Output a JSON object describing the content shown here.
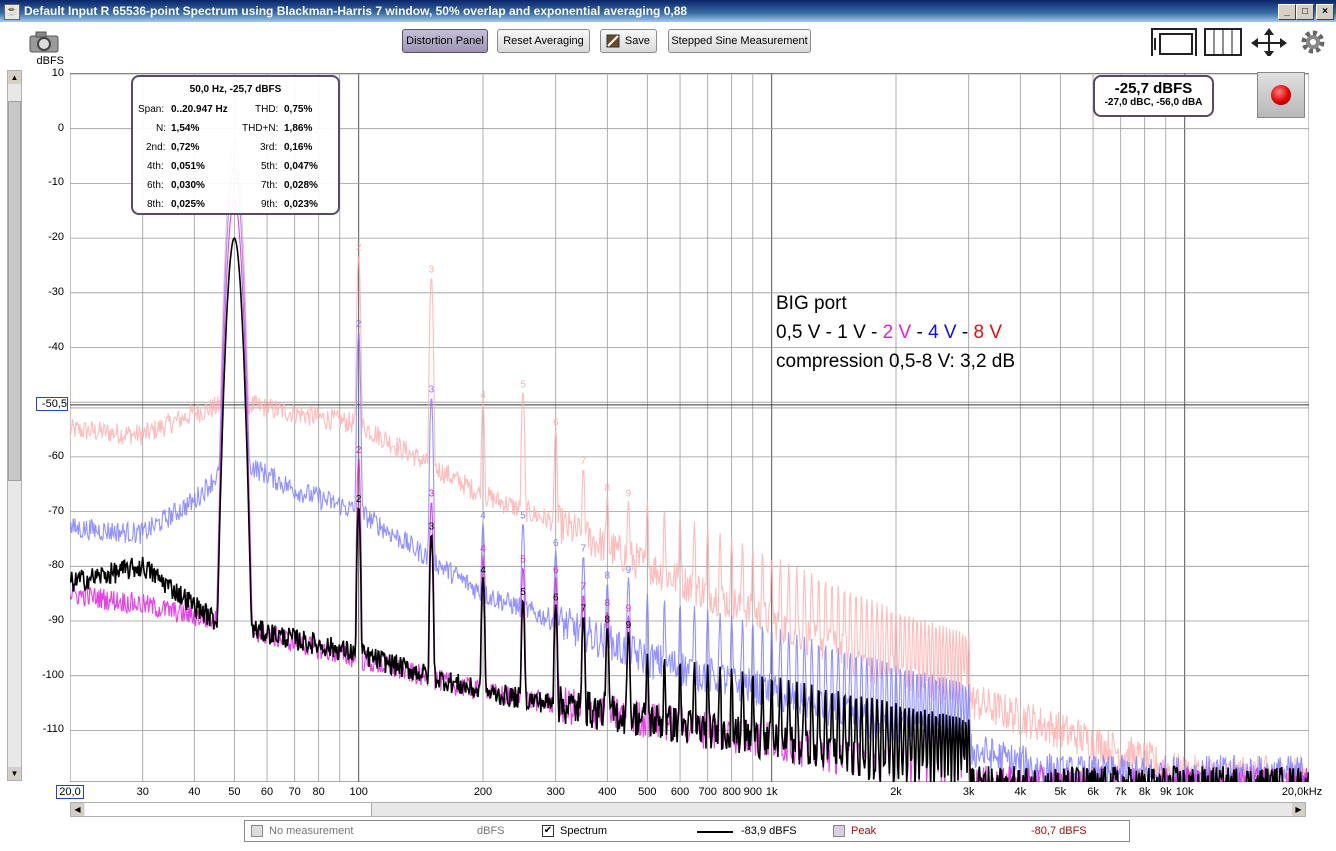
{
  "window": {
    "title": "Default Input R 65536-point Spectrum using Blackman-Harris 7 window, 50% overlap and exponential averaging 0,88",
    "minimize": "_",
    "maximize": "□",
    "close": "×"
  },
  "toolbar": {
    "distortion_panel": "Distortion Panel",
    "reset_averaging": "Reset Averaging",
    "save": "Save",
    "stepped_sine": "Stepped Sine Measurement"
  },
  "icons": {
    "camera": "camera-icon",
    "layout": "layout-icon",
    "grid": "grid-columns-icon",
    "expand": "expand-arrows-icon",
    "gear": "gear-icon"
  },
  "axis": {
    "y_unit": "dBFS",
    "y_ticks": [
      "10",
      "0",
      "-10",
      "-20",
      "-30",
      "-40",
      "-60",
      "-70",
      "-80",
      "-90",
      "-100",
      "-110"
    ],
    "y_cursor": "-50,5",
    "x_start": "20,0",
    "x_end": "20,0kHz",
    "x_ticks": [
      "30",
      "40",
      "50",
      "60",
      "70",
      "80",
      "100",
      "200",
      "300",
      "400",
      "500",
      "600",
      "700",
      "800",
      "900",
      "1k",
      "2k",
      "3k",
      "4k",
      "5k",
      "6k",
      "7k",
      "8k",
      "9k",
      "10k"
    ]
  },
  "distortion": {
    "header": "50,0 Hz, -25,7 dBFS",
    "span_label": "Span:",
    "span_value": "0..20.947 Hz",
    "thd_label": "THD:",
    "thd_value": "0,75%",
    "n_label": "N:",
    "n_value": "1,54%",
    "thdn_label": "THD+N:",
    "thdn_value": "1,86%",
    "h2_label": "2nd:",
    "h2_value": "0,72%",
    "h3_label": "3rd:",
    "h3_value": "0,16%",
    "h4_label": "4th:",
    "h4_value": "0,051%",
    "h5_label": "5th:",
    "h5_value": "0,047%",
    "h6_label": "6th:",
    "h6_value": "0,030%",
    "h7_label": "7th:",
    "h7_value": "0,028%",
    "h8_label": "8th:",
    "h8_value": "0,025%",
    "h9_label": "9th:",
    "h9_value": "0,023%"
  },
  "level": {
    "main": "-25,7 dBFS",
    "sub": "-27,0 dBC, -56,0 dBA"
  },
  "annotation": {
    "line1": "BIG port",
    "l2_a": "0,5 V - 1 V  - ",
    "l2_b": "2 V",
    "l2_c": "  - ",
    "l2_d": "4 V",
    "l2_e": " - ",
    "l2_f": "8 V",
    "line3": "compression 0,5-8 V: 3,2 dB",
    "color_2v": "#e020e0",
    "color_4v": "#1010e0",
    "color_8v": "#e01010"
  },
  "legend": {
    "no_measurement": "No measurement",
    "no_measurement_unit": "dBFS",
    "spectrum": "Spectrum",
    "spectrum_value": "-83,9 dBFS",
    "peak": "Peak",
    "peak_value": "-80,7 dBFS"
  },
  "chart_data": {
    "type": "line",
    "xlabel": "",
    "ylabel": "dBFS",
    "xlim": [
      20,
      20000
    ],
    "ylim": [
      -120,
      10
    ],
    "x_scale": "log",
    "grid": true,
    "fundamental_hz": 50,
    "harmonic_markers": [
      "2",
      "3",
      "4",
      "5",
      "6",
      "7",
      "8",
      "9"
    ],
    "series": [
      {
        "color": "#000000",
        "noise_floor": [
          [
            20,
            -83
          ],
          [
            30,
            -80
          ],
          [
            45,
            -90
          ],
          [
            100,
            -96
          ],
          [
            200,
            -103
          ],
          [
            500,
            -108
          ],
          [
            1000,
            -112
          ],
          [
            2000,
            -117
          ],
          [
            3000,
            -120
          ]
        ],
        "peaks": [
          [
            50,
            -20
          ],
          [
            100,
            -69
          ],
          [
            150,
            -74
          ],
          [
            200,
            -82
          ],
          [
            250,
            -86
          ],
          [
            300,
            -87
          ],
          [
            350,
            -89
          ],
          [
            400,
            -91
          ],
          [
            450,
            -92
          ]
        ]
      },
      {
        "color": "#e020e0",
        "noise_floor": [
          [
            20,
            -85
          ],
          [
            30,
            -87
          ],
          [
            45,
            -90
          ],
          [
            100,
            -97
          ],
          [
            200,
            -103
          ],
          [
            500,
            -108
          ],
          [
            1000,
            -112
          ],
          [
            2000,
            -117
          ],
          [
            3000,
            -120
          ]
        ],
        "peaks": [
          [
            50,
            -13
          ],
          [
            100,
            -60
          ],
          [
            150,
            -68
          ],
          [
            200,
            -78
          ],
          [
            250,
            -80
          ],
          [
            300,
            -82
          ],
          [
            350,
            -85
          ],
          [
            400,
            -88
          ],
          [
            450,
            -89
          ]
        ]
      },
      {
        "color": "#8080ff",
        "noise_floor": [
          [
            20,
            -73
          ],
          [
            30,
            -74
          ],
          [
            40,
            -68
          ],
          [
            50,
            -60
          ],
          [
            70,
            -66
          ],
          [
            100,
            -70
          ],
          [
            200,
            -85
          ],
          [
            300,
            -90
          ],
          [
            500,
            -97
          ],
          [
            1000,
            -103
          ],
          [
            2000,
            -110
          ],
          [
            5000,
            -118
          ]
        ],
        "peaks": [
          [
            50,
            -7
          ],
          [
            100,
            -37
          ],
          [
            150,
            -49
          ],
          [
            200,
            -72
          ],
          [
            250,
            -72
          ],
          [
            300,
            -77
          ],
          [
            350,
            -78
          ],
          [
            400,
            -83
          ],
          [
            450,
            -82
          ]
        ]
      },
      {
        "color": "#ffb0b0",
        "noise_floor": [
          [
            20,
            -55
          ],
          [
            30,
            -56
          ],
          [
            40,
            -52
          ],
          [
            50,
            -50
          ],
          [
            70,
            -52
          ],
          [
            100,
            -54
          ],
          [
            200,
            -67
          ],
          [
            300,
            -72
          ],
          [
            500,
            -80
          ],
          [
            1000,
            -90
          ],
          [
            2000,
            -100
          ],
          [
            5000,
            -110
          ],
          [
            10000,
            -118
          ]
        ],
        "peaks": [
          [
            50,
            -2
          ],
          [
            100,
            -23
          ],
          [
            150,
            -27
          ],
          [
            200,
            -50
          ],
          [
            250,
            -48
          ],
          [
            300,
            -55
          ],
          [
            350,
            -62
          ],
          [
            400,
            -67
          ],
          [
            450,
            -68
          ]
        ]
      }
    ]
  }
}
